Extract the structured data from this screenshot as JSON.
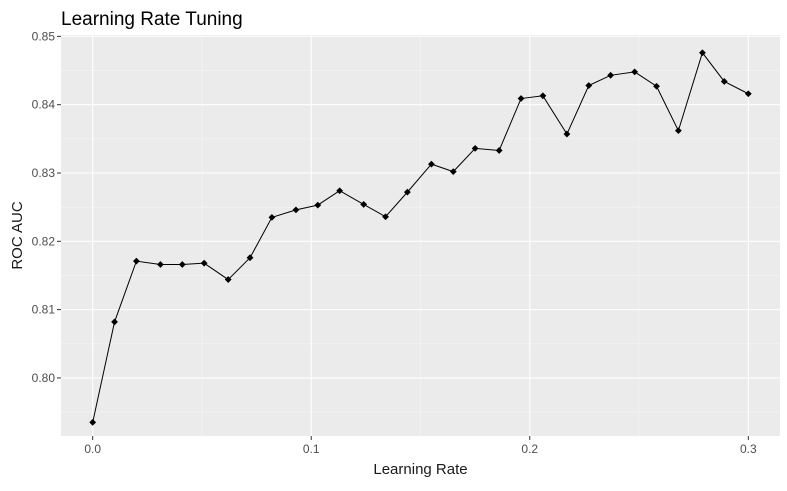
{
  "chart_data": {
    "type": "line",
    "title": "Learning Rate Tuning",
    "xlabel": "Learning Rate",
    "ylabel": "ROC AUC",
    "xlim": [
      -0.0145,
      0.3145
    ],
    "ylim": [
      0.7915,
      0.8502
    ],
    "x_ticks": [
      0.0,
      0.1,
      0.2,
      0.3
    ],
    "x_tick_labels": [
      "0.0",
      "0.1",
      "0.2",
      "0.3"
    ],
    "y_ticks": [
      0.8,
      0.81,
      0.82,
      0.83,
      0.84,
      0.85
    ],
    "y_tick_labels": [
      "0.80",
      "0.81",
      "0.82",
      "0.83",
      "0.84",
      "0.85"
    ],
    "grid": true,
    "legend": "none",
    "series": [
      {
        "line_color": "#000000",
        "marker": "diamond",
        "x": [
          0.0,
          0.01,
          0.02,
          0.031,
          0.041,
          0.051,
          0.062,
          0.072,
          0.082,
          0.093,
          0.103,
          0.113,
          0.124,
          0.134,
          0.144,
          0.155,
          0.165,
          0.175,
          0.186,
          0.196,
          0.206,
          0.217,
          0.227,
          0.237,
          0.248,
          0.258,
          0.268,
          0.279,
          0.289,
          0.3
        ],
        "y": [
          0.7935,
          0.8082,
          0.8171,
          0.8166,
          0.8166,
          0.8168,
          0.8144,
          0.8176,
          0.8235,
          0.8246,
          0.8253,
          0.8274,
          0.8254,
          0.8236,
          0.8272,
          0.8313,
          0.8302,
          0.8336,
          0.8333,
          0.8409,
          0.8413,
          0.8357,
          0.8428,
          0.8443,
          0.8448,
          0.8427,
          0.8362,
          0.8476,
          0.8434,
          0.8416
        ]
      }
    ]
  },
  "style": {
    "panel_background": "#ebebeb",
    "grid_major_color": "#ffffff",
    "grid_minor_color": "#f5f5f5",
    "tick_color": "#333333",
    "tick_label_color": "#4d4d4d",
    "title_color": "#000000"
  }
}
